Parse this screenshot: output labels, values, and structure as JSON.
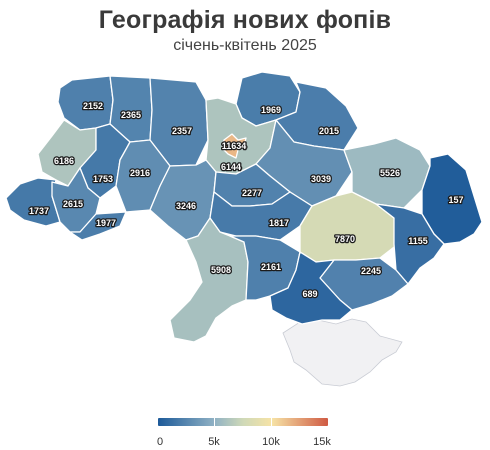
{
  "title": "Географія нових фопів",
  "subtitle": "січень-квітень 2025",
  "legend": {
    "min": 0,
    "max": 15000,
    "ticks": [
      {
        "value": 0,
        "label": "0"
      },
      {
        "value": 5000,
        "label": "5k"
      },
      {
        "value": 10000,
        "label": "10k"
      },
      {
        "value": 15000,
        "label": "15k"
      }
    ],
    "colors": {
      "low": "#1d5a99",
      "mid_low": "#8fb1c4",
      "mid": "#cfd9b8",
      "high_mid": "#f6e3a6",
      "high": "#cf5a43"
    }
  },
  "regions": [
    {
      "name": "volyn",
      "value": 2152
    },
    {
      "name": "rivne",
      "value": 2365
    },
    {
      "name": "zhytomyr",
      "value": 2357
    },
    {
      "name": "chernihiv",
      "value": 1969
    },
    {
      "name": "sumy",
      "value": 2015
    },
    {
      "name": "lviv",
      "value": 6186
    },
    {
      "name": "ternopil",
      "value": 1753
    },
    {
      "name": "khmelnytskyi",
      "value": 2916
    },
    {
      "name": "kyiv-oblast",
      "value": 6144
    },
    {
      "name": "kyiv-city",
      "value": 11634
    },
    {
      "name": "poltava",
      "value": 3039
    },
    {
      "name": "kharkiv",
      "value": 5526
    },
    {
      "name": "luhansk",
      "value": 157
    },
    {
      "name": "zakarpattia",
      "value": 1737
    },
    {
      "name": "ivano-frankivsk",
      "value": 2615
    },
    {
      "name": "chernivtsi",
      "value": 1977
    },
    {
      "name": "vinnytsia",
      "value": 3246
    },
    {
      "name": "cherkasy",
      "value": 2277
    },
    {
      "name": "kirovohrad",
      "value": 1817
    },
    {
      "name": "dnipropetrovsk",
      "value": 7870
    },
    {
      "name": "donetsk",
      "value": 1155
    },
    {
      "name": "odesa",
      "value": 5908
    },
    {
      "name": "mykolaiv",
      "value": 2161
    },
    {
      "name": "zaporizhzhia",
      "value": 2245
    },
    {
      "name": "kherson",
      "value": 689
    }
  ]
}
